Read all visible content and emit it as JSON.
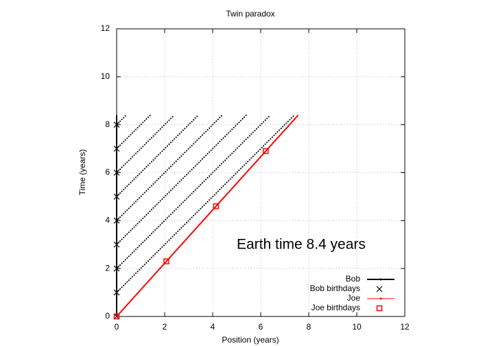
{
  "chart_data": {
    "type": "line",
    "title": "Twin paradox",
    "x_label": "Position (years)",
    "y_label": "Time (years)",
    "xlim": [
      0,
      12
    ],
    "ylim": [
      0,
      12
    ],
    "xticks": [
      0,
      2,
      4,
      6,
      8,
      10,
      12
    ],
    "yticks": [
      0,
      2,
      4,
      6,
      8,
      10,
      12
    ],
    "grid": true,
    "legend": "bottom-right",
    "annotation": "Earth time  8.4 years",
    "series": [
      {
        "name": "Bob",
        "color": "#000000",
        "style": "line",
        "x": [
          0,
          0
        ],
        "values": [
          0,
          8.4
        ]
      },
      {
        "name": "Bob birthdays",
        "color": "#000000",
        "style": "cross",
        "x": [
          0,
          0,
          0,
          0,
          0,
          0,
          0,
          0,
          0
        ],
        "values": [
          0,
          1,
          2,
          3,
          4,
          5,
          6,
          7,
          8
        ]
      },
      {
        "name": "Joe",
        "color": "#ff0000",
        "style": "line",
        "x": [
          0,
          7.56
        ],
        "values": [
          0,
          8.4
        ]
      },
      {
        "name": "Joe birthdays",
        "color": "#ff0000",
        "style": "square",
        "x": [
          0,
          2.07,
          4.14,
          6.21
        ],
        "values": [
          0,
          2.3,
          4.6,
          6.9
        ]
      }
    ],
    "signals": [
      {
        "x": [
          0,
          7.4
        ],
        "values": [
          1,
          8.4
        ]
      },
      {
        "x": [
          0,
          6.4
        ],
        "values": [
          2,
          8.4
        ]
      },
      {
        "x": [
          0,
          5.4
        ],
        "values": [
          3,
          8.4
        ]
      },
      {
        "x": [
          0,
          4.4
        ],
        "values": [
          4,
          8.4
        ]
      },
      {
        "x": [
          0,
          3.4
        ],
        "values": [
          5,
          8.4
        ]
      },
      {
        "x": [
          0,
          2.4
        ],
        "values": [
          6,
          8.4
        ]
      },
      {
        "x": [
          0,
          1.4
        ],
        "values": [
          7,
          8.4
        ]
      },
      {
        "x": [
          0,
          0.4
        ],
        "values": [
          8,
          8.4
        ]
      }
    ]
  }
}
